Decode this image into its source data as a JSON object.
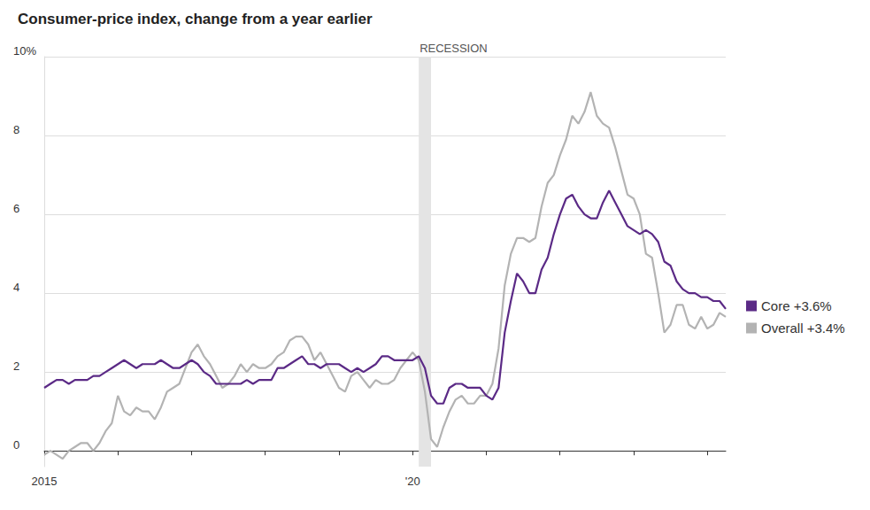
{
  "chart_data": {
    "type": "line",
    "title": "Consumer-price index, change from a year earlier",
    "categories": [
      "2015",
      null,
      null,
      null,
      null,
      null,
      null,
      null,
      null,
      null,
      null,
      null,
      null,
      null,
      null,
      null,
      null,
      null,
      null,
      null,
      null,
      null,
      null,
      null,
      null,
      null,
      null,
      null,
      null,
      null,
      null,
      null,
      null,
      null,
      null,
      null,
      null,
      null,
      null,
      null,
      null,
      null,
      null,
      null,
      null,
      null,
      null,
      null,
      null,
      null,
      null,
      null,
      null,
      null,
      null,
      null,
      null,
      null,
      null,
      null,
      "'20",
      null,
      null,
      null,
      null,
      null,
      null,
      null,
      null,
      null,
      null,
      null,
      null,
      null,
      null,
      null,
      null,
      null,
      null,
      null,
      null,
      null,
      null,
      null,
      null,
      null,
      null,
      null,
      null,
      null,
      null,
      null,
      null,
      null,
      null,
      null,
      null,
      null,
      null,
      null,
      null,
      null,
      null,
      null,
      null,
      null,
      null,
      null,
      null,
      null,
      null,
      null
    ],
    "series": [
      {
        "name": "Core +3.6%",
        "color": "#5b2a86",
        "values": [
          1.6,
          1.7,
          1.8,
          1.8,
          1.7,
          1.8,
          1.8,
          1.8,
          1.9,
          1.9,
          2.0,
          2.1,
          2.2,
          2.3,
          2.2,
          2.1,
          2.2,
          2.2,
          2.2,
          2.3,
          2.2,
          2.1,
          2.1,
          2.2,
          2.3,
          2.2,
          2.0,
          1.9,
          1.7,
          1.7,
          1.7,
          1.7,
          1.7,
          1.8,
          1.7,
          1.8,
          1.8,
          1.8,
          2.1,
          2.1,
          2.2,
          2.3,
          2.4,
          2.2,
          2.2,
          2.1,
          2.2,
          2.2,
          2.2,
          2.1,
          2.0,
          2.1,
          2.0,
          2.1,
          2.2,
          2.4,
          2.4,
          2.3,
          2.3,
          2.3,
          2.3,
          2.4,
          2.1,
          1.4,
          1.2,
          1.2,
          1.6,
          1.7,
          1.7,
          1.6,
          1.6,
          1.6,
          1.4,
          1.3,
          1.6,
          3.0,
          3.8,
          4.5,
          4.3,
          4.0,
          4.0,
          4.6,
          4.9,
          5.5,
          6.0,
          6.4,
          6.5,
          6.2,
          6.0,
          5.9,
          5.9,
          6.3,
          6.6,
          6.3,
          6.0,
          5.7,
          5.6,
          5.5,
          5.6,
          5.5,
          5.3,
          4.8,
          4.7,
          4.3,
          4.1,
          4.0,
          4.0,
          3.9,
          3.9,
          3.8,
          3.8,
          3.6
        ]
      },
      {
        "name": "Overall +3.4%",
        "color": "#b3b3b3",
        "values": [
          -0.1,
          0.0,
          -0.1,
          -0.2,
          0.0,
          0.1,
          0.2,
          0.2,
          0.0,
          0.2,
          0.5,
          0.7,
          1.4,
          1.0,
          0.9,
          1.1,
          1.0,
          1.0,
          0.8,
          1.1,
          1.5,
          1.6,
          1.7,
          2.1,
          2.5,
          2.7,
          2.4,
          2.2,
          1.9,
          1.6,
          1.7,
          1.9,
          2.2,
          2.0,
          2.2,
          2.1,
          2.1,
          2.2,
          2.4,
          2.5,
          2.8,
          2.9,
          2.9,
          2.7,
          2.3,
          2.5,
          2.2,
          1.9,
          1.6,
          1.5,
          1.9,
          2.0,
          1.8,
          1.6,
          1.8,
          1.7,
          1.7,
          1.8,
          2.1,
          2.3,
          2.5,
          2.3,
          1.5,
          0.3,
          0.1,
          0.6,
          1.0,
          1.3,
          1.4,
          1.2,
          1.2,
          1.4,
          1.4,
          1.7,
          2.6,
          4.2,
          5.0,
          5.4,
          5.4,
          5.3,
          5.4,
          6.2,
          6.8,
          7.0,
          7.5,
          7.9,
          8.5,
          8.3,
          8.6,
          9.1,
          8.5,
          8.3,
          8.2,
          7.7,
          7.1,
          6.5,
          6.4,
          6.0,
          5.0,
          4.9,
          4.0,
          3.0,
          3.2,
          3.7,
          3.7,
          3.2,
          3.1,
          3.4,
          3.1,
          3.2,
          3.5,
          3.4
        ]
      }
    ],
    "ylim": [
      -0.4,
      10
    ],
    "yticks": [
      0,
      2,
      4,
      6,
      8,
      {
        "value": 10,
        "label": "10%"
      }
    ],
    "grid": true,
    "legend": "right",
    "annotations": [
      {
        "text": "RECESSION",
        "from": 61,
        "to": 63
      }
    ]
  }
}
